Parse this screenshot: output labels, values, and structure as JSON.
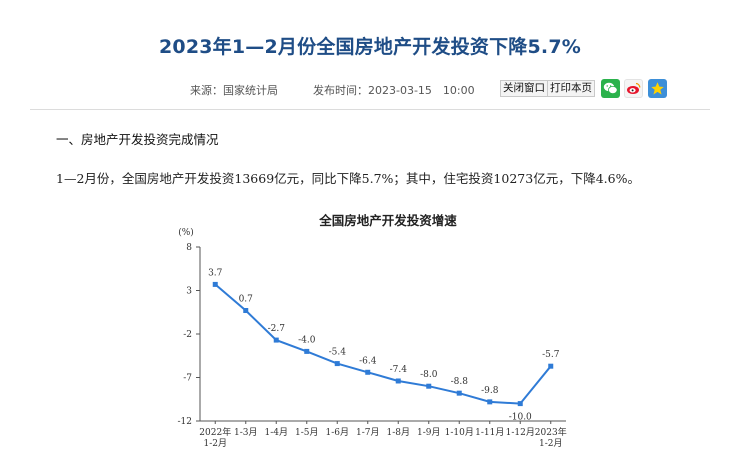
{
  "article": {
    "title": "2023年1—2月份全国房地产开发投资下降5.7%",
    "source": "来源：国家统计局",
    "published": "发布时间：2023-03-15　10:00",
    "close_label": "关闭窗口",
    "print_label": "打印本页",
    "section_heading": "一、房地产开发投资完成情况",
    "paragraph": "1—2月份，全国房地产开发投资13669亿元，同比下降5.7%；其中，住宅投资10273亿元，下降4.6%。"
  },
  "share": {
    "icons": [
      "wechat-icon",
      "weibo-icon",
      "favorite-icon"
    ],
    "colors": {
      "wechat": "#2bb24c",
      "weibo": "#e6162d",
      "favorite": "#3d8fd8"
    }
  },
  "chart_data": {
    "type": "line",
    "title": "全国房地产开发投资增速",
    "ylabel": "(%)",
    "ylim": [
      -12,
      8
    ],
    "yticks": [
      8,
      3,
      -2,
      -7,
      -12
    ],
    "grid": false,
    "color": "#2f7bd6",
    "x": [
      "2022年\n1-2月",
      "1-3月",
      "1-4月",
      "1-5月",
      "1-6月",
      "1-7月",
      "1-8月",
      "1-9月",
      "1-10月",
      "1-11月",
      "1-12月",
      "2023年\n1-2月"
    ],
    "values": [
      3.7,
      0.7,
      -2.7,
      -4.0,
      -5.4,
      -6.4,
      -7.4,
      -8.0,
      -8.8,
      -9.8,
      -10.0,
      -5.7
    ],
    "labels": [
      "3.7",
      "0.7",
      "-2.7",
      "-4.0",
      "-5.4",
      "-6.4",
      "-7.4",
      "-8.0",
      "-8.8",
      "-9.8",
      "-10.0",
      "-5.7"
    ]
  }
}
